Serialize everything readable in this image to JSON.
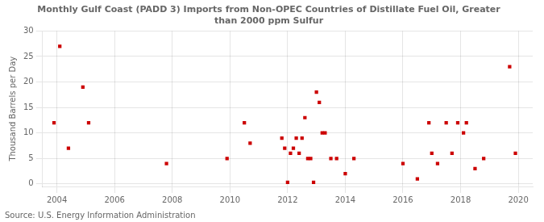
{
  "chart_data": {
    "type": "scatter",
    "title": "Monthly Gulf Coast (PADD 3) Imports from Non-OPEC Countries of Distillate Fuel Oil, Greater\nthan 2000 ppm Sulfur",
    "ylabel": "Thousand Barrels per Day",
    "annotations": [
      "Source: U.S. Energy Information Administration"
    ],
    "color": "#cc0000",
    "marker": "square",
    "grid": true,
    "xlim": [
      2003.5,
      2020.5
    ],
    "ylim": [
      -0.5,
      30
    ],
    "xticks": [
      2004,
      2006,
      2008,
      2010,
      2012,
      2014,
      2016,
      2018,
      2020
    ],
    "yticks": [
      0,
      5,
      10,
      15,
      20,
      25,
      30
    ],
    "x": [
      2003.9,
      2004.1,
      2004.4,
      2004.9,
      2005.1,
      2007.8,
      2009.9,
      2010.5,
      2010.7,
      2011.8,
      2011.9,
      2012.0,
      2012.1,
      2012.2,
      2012.3,
      2012.4,
      2012.5,
      2012.6,
      2012.7,
      2012.8,
      2012.9,
      2013.0,
      2013.1,
      2013.2,
      2013.3,
      2013.5,
      2013.7,
      2014.0,
      2014.3,
      2016.0,
      2016.5,
      2016.9,
      2017.0,
      2017.2,
      2017.5,
      2017.7,
      2017.9,
      2018.1,
      2018.2,
      2018.5,
      2018.8,
      2019.7,
      2019.9
    ],
    "values": [
      12,
      27,
      7,
      19,
      12,
      4,
      5,
      12,
      8,
      9,
      7,
      0.3,
      6,
      7,
      9,
      6,
      9,
      13,
      5,
      5,
      0.3,
      18,
      16,
      10,
      10,
      5,
      5,
      2,
      5,
      4,
      1,
      12,
      6,
      4,
      12,
      6,
      12,
      10,
      12,
      3,
      5,
      23,
      6
    ]
  }
}
